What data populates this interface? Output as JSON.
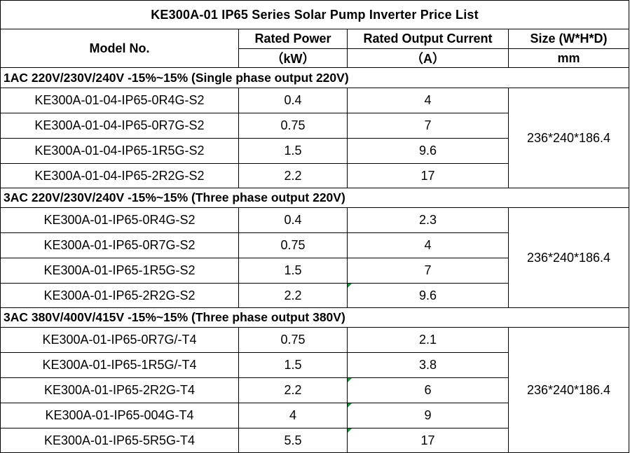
{
  "title": "KE300A-01 IP65 Series Solar Pump Inverter Price List",
  "header": {
    "model_label": "Model No.",
    "power_label": "Rated Power",
    "power_unit": "（kW）",
    "current_label": "Rated Output Current",
    "current_unit": "（A）",
    "size_label": "Size (W*H*D)",
    "size_unit": "mm"
  },
  "sections": [
    {
      "label": "1AC 220V/230V/240V -15%~15% (Single phase output 220V)",
      "size": "236*240*186.4",
      "rows": [
        {
          "model": "KE300A-01-04-IP65-0R4G-S2",
          "power": "0.4",
          "current": "4"
        },
        {
          "model": "KE300A-01-04-IP65-0R7G-S2",
          "power": "0.75",
          "current": "7"
        },
        {
          "model": "KE300A-01-04-IP65-1R5G-S2",
          "power": "1.5",
          "current": "9.6"
        },
        {
          "model": "KE300A-01-04-IP65-2R2G-S2",
          "power": "2.2",
          "current": "17"
        }
      ]
    },
    {
      "label": "3AC 220V/230V/240V -15%~15% (Three phase output 220V)",
      "size": "236*240*186.4",
      "rows": [
        {
          "model": "KE300A-01-IP65-0R4G-S2",
          "power": "0.4",
          "current": "2.3"
        },
        {
          "model": "KE300A-01-IP65-0R7G-S2",
          "power": "0.75",
          "current": "4"
        },
        {
          "model": "KE300A-01-IP65-1R5G-S2",
          "power": "1.5",
          "current": "7"
        },
        {
          "model": "KE300A-01-IP65-2R2G-S2",
          "power": "2.2",
          "current": "9.6"
        }
      ]
    },
    {
      "label": "3AC 380V/400V/415V -15%~15% (Three phase output 380V)",
      "size": "236*240*186.4",
      "rows": [
        {
          "model": "KE300A-01-IP65-0R7G/-T4",
          "power": "0.75",
          "current": "2.1"
        },
        {
          "model": "KE300A-01-IP65-1R5G/-T4",
          "power": "1.5",
          "current": "3.8"
        },
        {
          "model": "KE300A-01-IP65-2R2G-T4",
          "power": "2.2",
          "current": "6"
        },
        {
          "model": "KE300A-01-IP65-004G-T4",
          "power": "4",
          "current": "9"
        },
        {
          "model": "KE300A-01-IP65-5R5G-T4",
          "power": "5.5",
          "current": "17"
        }
      ]
    }
  ],
  "colors": {
    "title": "#1F3864",
    "border": "#000000",
    "cell_marker": "#1E8E3E"
  }
}
